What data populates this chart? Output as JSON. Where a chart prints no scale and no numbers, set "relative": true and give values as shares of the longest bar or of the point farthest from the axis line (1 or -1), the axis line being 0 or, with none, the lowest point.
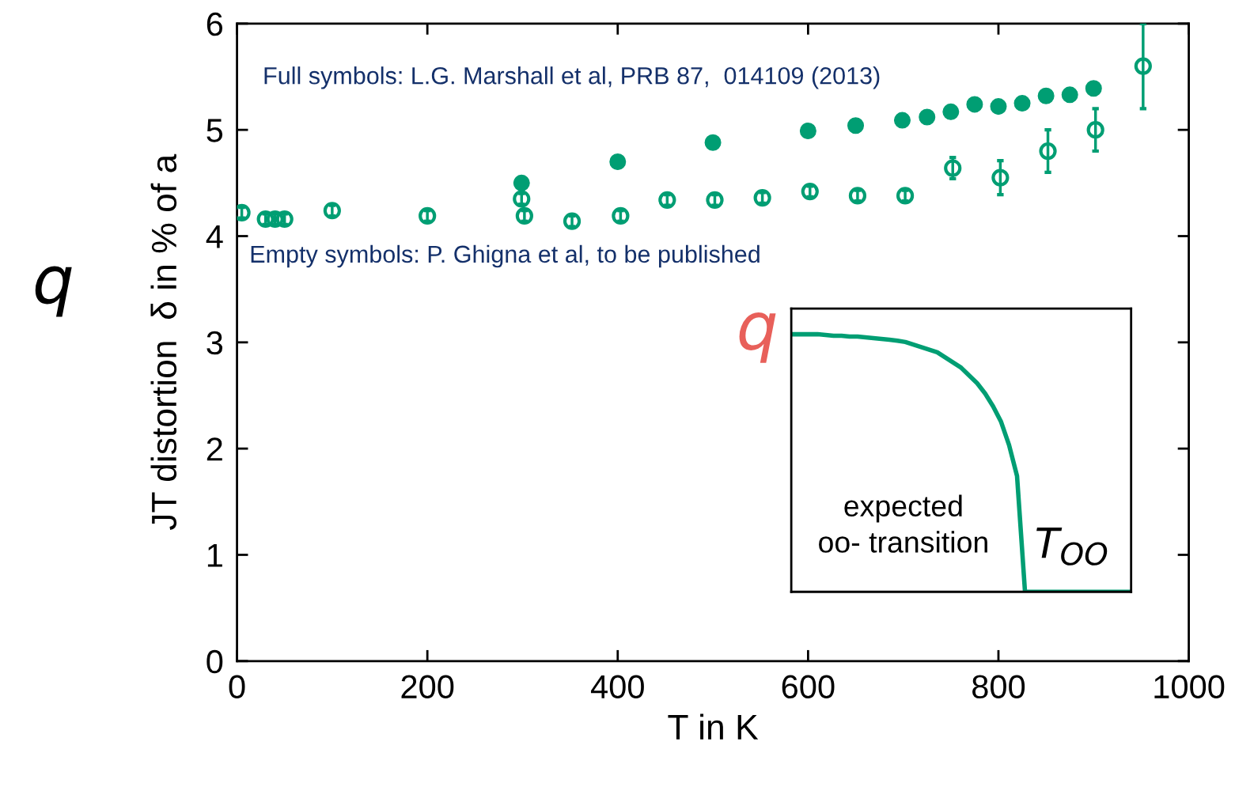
{
  "chart_data": [
    {
      "type": "scatter",
      "xlabel": "T in K",
      "ylabel": "JT distortion  δ in % of a",
      "xlim": [
        0,
        1000
      ],
      "xticks": [
        0,
        200,
        400,
        600,
        800,
        1000
      ],
      "ylim": [
        0,
        6
      ],
      "yticks": [
        0,
        1,
        2,
        3,
        4,
        5,
        6
      ],
      "marker": "circle",
      "annotations": [
        "Full symbols: L.G. Marshall et al, PRB 87,  014109 (2013)",
        "Empty symbols: P. Ghigna et al, to be published",
        "q"
      ],
      "series": [
        {
          "color": "#009e73",
          "x": [
            299,
            400,
            500,
            600,
            650,
            699,
            725,
            750,
            775,
            800,
            825,
            850,
            875,
            900
          ],
          "values": [
            4.5,
            4.7,
            4.88,
            4.99,
            5.04,
            5.09,
            5.12,
            5.17,
            5.24,
            5.22,
            5.25,
            5.32,
            5.33,
            5.39
          ]
        },
        {
          "color": "#009e73",
          "x": [
            5,
            30,
            40,
            50,
            100,
            200,
            299,
            302,
            352,
            403,
            452,
            502,
            552,
            602,
            652,
            702,
            752,
            802,
            852,
            902,
            952
          ],
          "values": [
            4.22,
            4.16,
            4.16,
            4.16,
            4.24,
            4.19,
            4.35,
            4.19,
            4.14,
            4.19,
            4.34,
            4.34,
            4.36,
            4.42,
            4.38,
            4.38,
            4.64,
            4.55,
            4.8,
            5.0,
            5.6
          ],
          "errors": [
            0.05,
            0.05,
            0.05,
            0.05,
            0.05,
            0.05,
            0.05,
            0.05,
            0.05,
            0.05,
            0.05,
            0.05,
            0.05,
            0.05,
            0.05,
            0.05,
            0.1,
            0.16,
            0.2,
            0.2,
            0.4
          ]
        }
      ]
    },
    {
      "type": "line",
      "relative": true,
      "ylabel": "q",
      "annotations": [
        "T$_{OO}$",
        "expected\noo- transition"
      ],
      "categories": [
        null,
        null,
        null,
        null,
        null,
        null,
        null,
        null,
        null,
        null,
        null,
        null,
        null,
        null,
        null,
        null,
        null,
        null,
        null,
        null,
        null,
        null,
        null,
        null,
        null,
        null,
        null,
        null,
        null,
        null,
        null,
        null,
        null,
        null,
        null,
        null,
        null,
        null,
        null,
        null,
        null,
        null,
        null
      ],
      "series": [
        {
          "color": "#009e73",
          "values": [
            1.0,
            1.0,
            1.0,
            1.0,
            0.997,
            0.994,
            0.994,
            0.991,
            0.991,
            0.988,
            0.985,
            0.982,
            0.979,
            0.975,
            0.97,
            0.96,
            0.95,
            0.94,
            0.93,
            0.91,
            0.89,
            0.87,
            0.84,
            0.81,
            0.77,
            0.72,
            0.66,
            0.57,
            0.45,
            0,
            0,
            0,
            0,
            0,
            0,
            0,
            0,
            0,
            0,
            0,
            0,
            0,
            0
          ]
        }
      ]
    }
  ]
}
